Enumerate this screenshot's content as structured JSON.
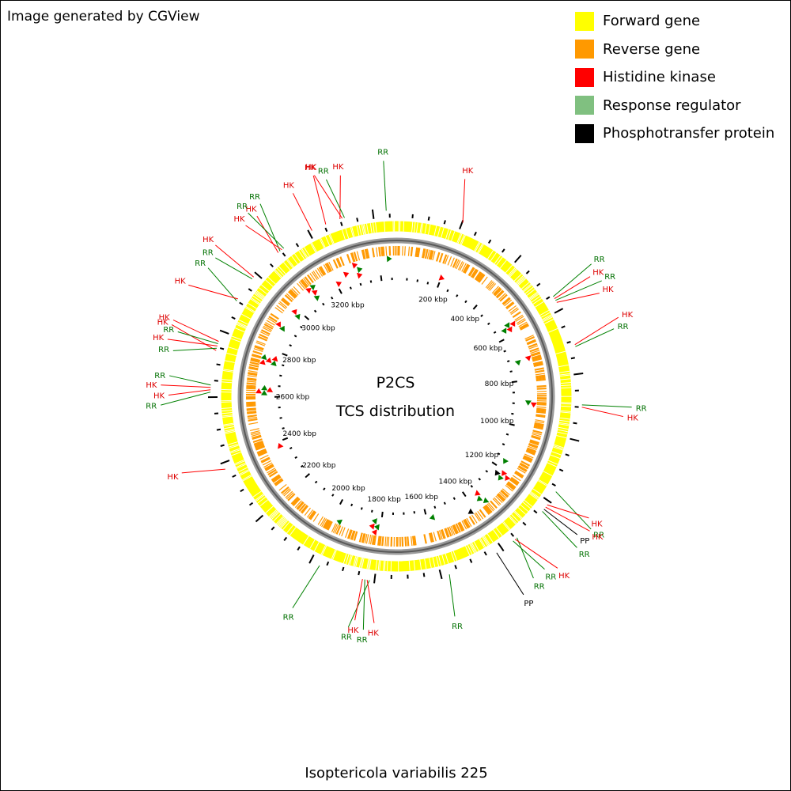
{
  "credit": "Image generated by CGView",
  "legend": [
    {
      "label": "Forward gene",
      "color": "#ffff00"
    },
    {
      "label": "Reverse gene",
      "color": "#ff9900"
    },
    {
      "label": "Histidine kinase",
      "color": "#ff0000"
    },
    {
      "label": "Response regulator",
      "color": "#80c080"
    },
    {
      "label": "Phosphotransfer protein",
      "color": "#000000"
    }
  ],
  "center_title": "P2CS",
  "center_subtitle": "TCS distribution",
  "organism": "Isoptericola variabilis 225",
  "genome_kbp": 3470,
  "kbp_ticks": [
    "200 kbp",
    "400 kbp",
    "600 kbp",
    "800 kbp",
    "1000 kbp",
    "1200 kbp",
    "1400 kbp",
    "1600 kbp",
    "1800 kbp",
    "2000 kbp",
    "2200 kbp",
    "2400 kbp",
    "2600 kbp",
    "2800 kbp",
    "3000 kbp",
    "3200 kbp"
  ],
  "label_colors": {
    "HK": "#dd0000",
    "RR": "#007000",
    "PP": "#000000"
  },
  "features": [
    {
      "type": "HK",
      "kbp": 202
    },
    {
      "type": "RR",
      "kbp": 555
    },
    {
      "type": "HK",
      "kbp": 562
    },
    {
      "type": "RR",
      "kbp": 568
    },
    {
      "type": "HK",
      "kbp": 575
    },
    {
      "type": "HK",
      "kbp": 712
    },
    {
      "type": "RR",
      "kbp": 718
    },
    {
      "type": "RR",
      "kbp": 893
    },
    {
      "type": "HK",
      "kbp": 900
    },
    {
      "type": "RR",
      "kbp": 1165
    },
    {
      "type": "HK",
      "kbp": 1212
    },
    {
      "type": "HK",
      "kbp": 1220
    },
    {
      "type": "PP",
      "kbp": 1228
    },
    {
      "type": "RR",
      "kbp": 1236
    },
    {
      "type": "RR",
      "kbp": 1345
    },
    {
      "type": "HK",
      "kbp": 1352
    },
    {
      "type": "RR",
      "kbp": 1360
    },
    {
      "type": "PP",
      "kbp": 1420
    },
    {
      "type": "RR",
      "kbp": 1575
    },
    {
      "type": "RR",
      "kbp": 1815
    },
    {
      "type": "HK",
      "kbp": 1822
    },
    {
      "type": "RR",
      "kbp": 1829
    },
    {
      "type": "HK",
      "kbp": 1836
    },
    {
      "type": "RR",
      "kbp": 1970
    },
    {
      "type": "HK",
      "kbp": 2380
    },
    {
      "type": "RR",
      "kbp": 2615
    },
    {
      "type": "HK",
      "kbp": 2622
    },
    {
      "type": "HK",
      "kbp": 2629
    },
    {
      "type": "RR",
      "kbp": 2636
    },
    {
      "type": "HK",
      "kbp": 2740
    },
    {
      "type": "RR",
      "kbp": 2747
    },
    {
      "type": "HK",
      "kbp": 2754
    },
    {
      "type": "RR",
      "kbp": 2761
    },
    {
      "type": "HK",
      "kbp": 2768
    },
    {
      "type": "RR",
      "kbp": 2900
    },
    {
      "type": "HK",
      "kbp": 2907
    },
    {
      "type": "RR",
      "kbp": 2980
    },
    {
      "type": "HK",
      "kbp": 2987
    },
    {
      "type": "HK",
      "kbp": 3090
    },
    {
      "type": "RR",
      "kbp": 3097
    },
    {
      "type": "HK",
      "kbp": 3104
    },
    {
      "type": "RR",
      "kbp": 3111
    },
    {
      "type": "HK",
      "kbp": 3210
    },
    {
      "type": "HK",
      "kbp": 3255
    },
    {
      "type": "HK",
      "kbp": 3300
    },
    {
      "type": "HK",
      "kbp": 3307
    },
    {
      "type": "RR",
      "kbp": 3314
    },
    {
      "type": "RR",
      "kbp": 3440
    }
  ]
}
